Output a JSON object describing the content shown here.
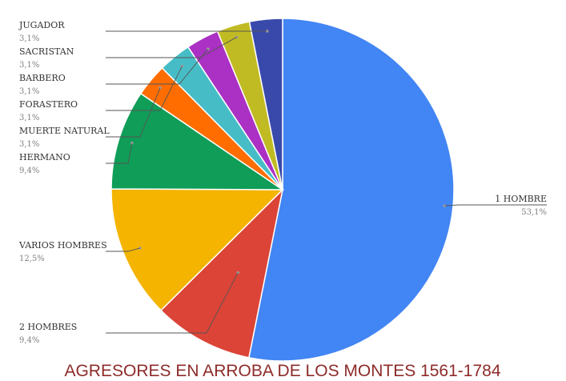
{
  "chart_data": {
    "type": "pie",
    "title": "AGRESORES EN ARROBA DE LOS MONTES 1561-1784",
    "start_angle_deg": 0,
    "direction": "clockwise",
    "slices": [
      {
        "label": "1 HOMBRE",
        "value": 53.1,
        "display": "53,1%",
        "color": "#4285f4"
      },
      {
        "label": "2 HOMBRES",
        "value": 9.4,
        "display": "9,4%",
        "color": "#db4437"
      },
      {
        "label": "VARIOS HOMBRES",
        "value": 12.5,
        "display": "12,5%",
        "color": "#f4b400"
      },
      {
        "label": "HERMANO",
        "value": 9.4,
        "display": "9,4%",
        "color": "#0f9d58"
      },
      {
        "label": "MUERTE NATURAL",
        "value": 3.1,
        "display": "3,1%",
        "color": "#ff6d00"
      },
      {
        "label": "FORASTERO",
        "value": 3.1,
        "display": "3,1%",
        "color": "#46bdc6"
      },
      {
        "label": "BARBERO",
        "value": 3.1,
        "display": "3,1%",
        "color": "#ab30c4"
      },
      {
        "label": "SACRISTAN",
        "value": 3.1,
        "display": "3,1%",
        "color": "#c0bb23"
      },
      {
        "label": "JUGADOR",
        "value": 3.1,
        "display": "3,1%",
        "color": "#3949ab"
      }
    ],
    "legend": "none",
    "label_style": "callout-lines"
  }
}
